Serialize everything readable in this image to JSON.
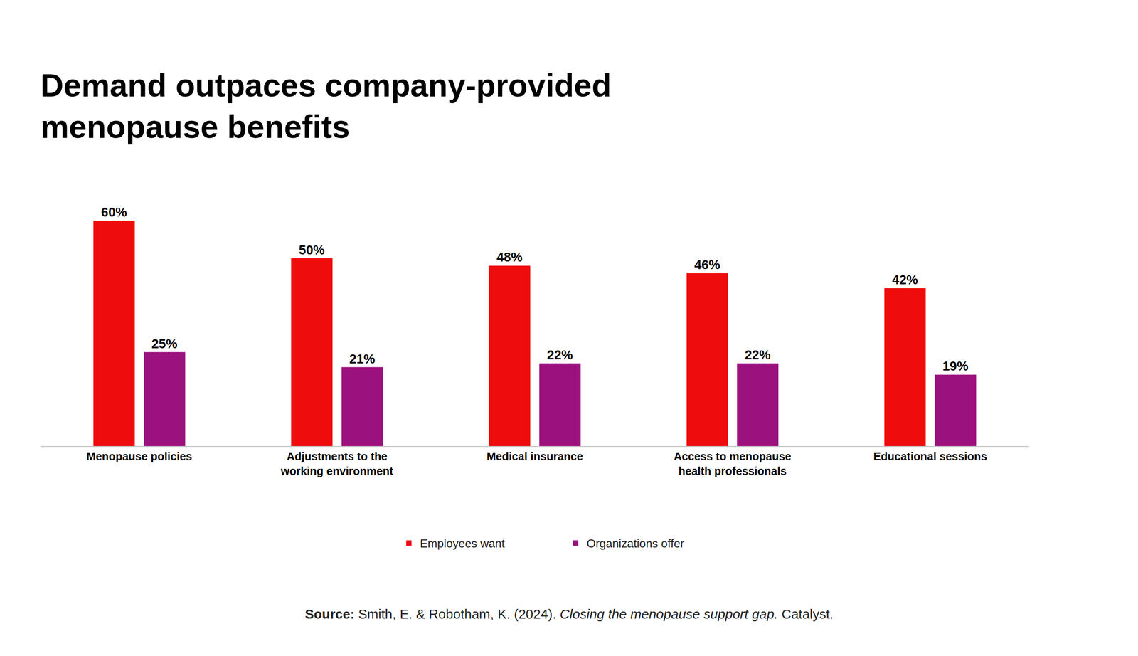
{
  "chart_data": {
    "type": "bar",
    "title": "Demand outpaces company-provided menopause benefits",
    "categories": [
      "Menopause policies",
      "Adjustments to the working environment",
      "Medical insurance",
      "Access to menopause health professionals",
      "Educational sessions"
    ],
    "series": [
      {
        "name": "Employees want",
        "color": "#ee0c0c",
        "values": [
          60,
          50,
          48,
          46,
          42
        ],
        "value_labels": [
          "60%",
          "50%",
          "48%",
          "46%",
          "42%"
        ]
      },
      {
        "name": "Organizations offer",
        "color": "#9b117e",
        "values": [
          25,
          21,
          22,
          22,
          19
        ],
        "value_labels": [
          "25%",
          "21%",
          "22%",
          "22%",
          "19%"
        ]
      }
    ],
    "ylim": [
      0,
      60
    ],
    "tick_labels": "x",
    "grid": false,
    "legend": "bottom",
    "data_labels": true,
    "source": {
      "label": "Source:",
      "authors": "Smith, E. & Robotham, K. (2024).",
      "work": "Closing the menopause support gap.",
      "publisher": "Catalyst."
    }
  }
}
